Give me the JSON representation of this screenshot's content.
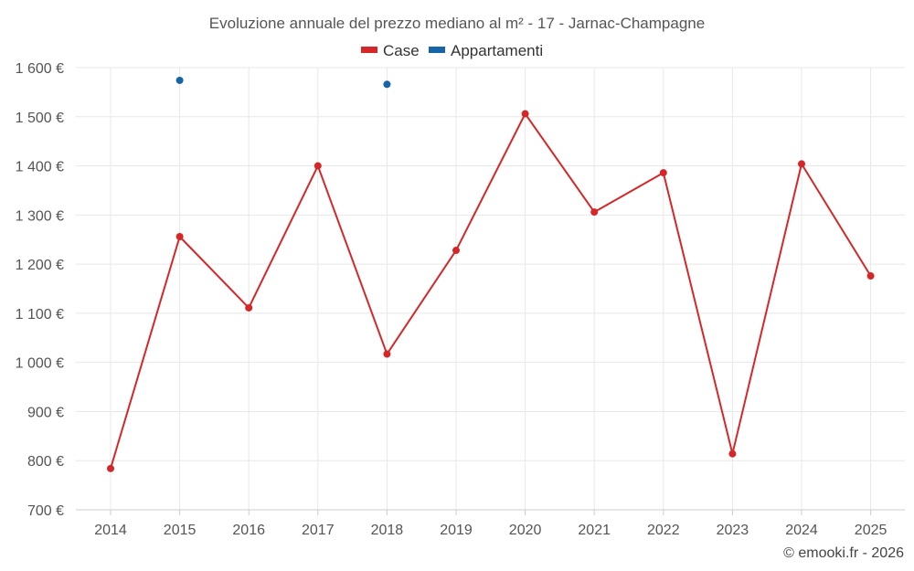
{
  "chart_data": {
    "type": "line",
    "title": "Evoluzione annuale del prezzo mediano al m² - 17 - Jarnac-Champagne",
    "categories": [
      "2014",
      "2015",
      "2016",
      "2017",
      "2018",
      "2019",
      "2020",
      "2021",
      "2022",
      "2023",
      "2024",
      "2025"
    ],
    "y_tick_labels": [
      "700 €",
      "800 €",
      "900 €",
      "1 000 €",
      "1 100 €",
      "1 200 €",
      "1 300 €",
      "1 400 €",
      "1 500 €",
      "1 600 €"
    ],
    "y_ticks": [
      700,
      800,
      900,
      1000,
      1100,
      1200,
      1300,
      1400,
      1500,
      1600
    ],
    "ylim": [
      700,
      1600
    ],
    "xlabel": "",
    "ylabel": "",
    "legend_position": "top-center",
    "series": [
      {
        "name": "Case",
        "color": "#d62728",
        "values": [
          784,
          1256,
          1111,
          1400,
          1017,
          1228,
          1506,
          1306,
          1386,
          814,
          1404,
          1176
        ]
      },
      {
        "name": "Appartamenti",
        "color": "#1565a8",
        "values": [
          null,
          1574,
          null,
          null,
          1566,
          null,
          null,
          null,
          null,
          null,
          null,
          null
        ]
      }
    ]
  },
  "credit": "© emooki.fr - 2026"
}
